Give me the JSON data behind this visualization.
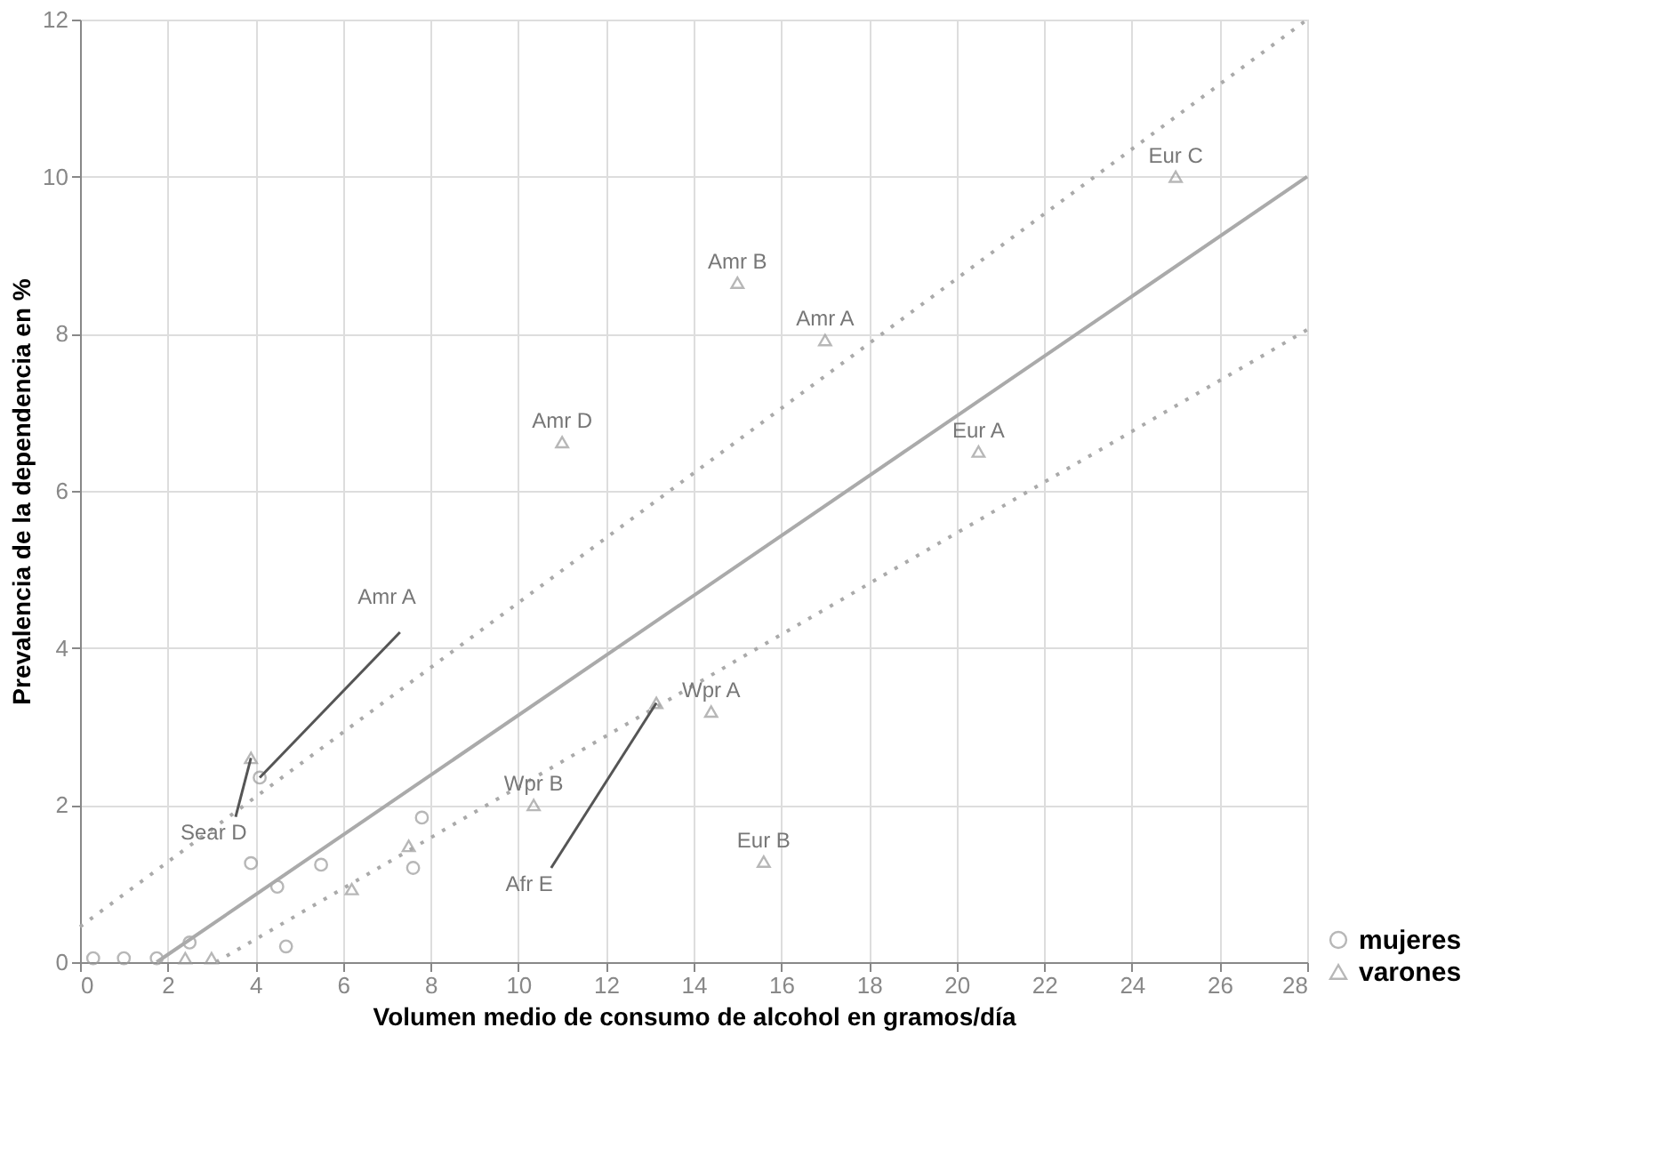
{
  "chart_data": {
    "type": "scatter",
    "xlabel": "Volumen medio de consumo de alcohol en gramos/día",
    "ylabel": "Prevalencia de la dependencia en %",
    "xlim": [
      0,
      28
    ],
    "ylim": [
      0,
      12
    ],
    "xticks": [
      0,
      2,
      4,
      6,
      8,
      10,
      12,
      14,
      16,
      18,
      20,
      22,
      24,
      26,
      28
    ],
    "yticks": [
      0,
      2,
      4,
      6,
      8,
      10,
      12
    ],
    "grid": true,
    "legend": "bottom right",
    "series": [
      {
        "name": "mujeres",
        "marker": "circle",
        "color": "#999999",
        "x": [
          0.3,
          1.0,
          1.75,
          2.5,
          3.9,
          4.1,
          4.5,
          4.7,
          5.5,
          7.6,
          7.8
        ],
        "values": [
          0.05,
          0.05,
          0.05,
          0.25,
          1.26,
          2.35,
          0.96,
          0.2,
          1.24,
          1.2,
          1.84
        ]
      },
      {
        "name": "varones",
        "marker": "triangle",
        "color": "#999999",
        "x": [
          2.4,
          3.0,
          3.9,
          6.2,
          7.5,
          10.35,
          11.0,
          13.15,
          14.4,
          15.0,
          15.6,
          17.0,
          20.5,
          25.0
        ],
        "values": [
          0.05,
          0.05,
          2.6,
          0.93,
          1.48,
          2.0,
          6.62,
          3.3,
          3.19,
          8.65,
          1.28,
          7.92,
          6.5,
          10.0
        ]
      },
      {
        "type": "line",
        "line_style": "solid",
        "color": "#aaaaaa",
        "x": [
          1.75,
          28
        ],
        "values": [
          0,
          10
        ]
      },
      {
        "type": "line",
        "line_style": "dotted",
        "color": "#aaaaaa",
        "x": [
          0,
          28
        ],
        "values": [
          0.45,
          12
        ]
      },
      {
        "type": "line",
        "line_style": "dotted",
        "color": "#aaaaaa",
        "x": [
          3.1,
          28
        ],
        "values": [
          0,
          8.05
        ]
      }
    ],
    "annotations": [
      {
        "text": "Eur C",
        "x": 25.0,
        "y": 10.0
      },
      {
        "text": "Amr B",
        "x": 15.0,
        "y": 8.65
      },
      {
        "text": "Amr A",
        "x": 17.0,
        "y": 7.92
      },
      {
        "text": "Amr D",
        "x": 11.0,
        "y": 6.62
      },
      {
        "text": "Eur A",
        "x": 20.5,
        "y": 6.5
      },
      {
        "text": "Sear D",
        "x": 3.9,
        "y": 2.6
      },
      {
        "text": "Amr A",
        "x": 4.1,
        "y": 2.35
      },
      {
        "text": "Wpr A",
        "x": 14.4,
        "y": 3.19
      },
      {
        "text": "Afr E",
        "x": 13.15,
        "y": 3.3
      },
      {
        "text": "Wpr B",
        "x": 10.35,
        "y": 2.0
      },
      {
        "text": "Eur B",
        "x": 15.6,
        "y": 1.28
      }
    ]
  }
}
